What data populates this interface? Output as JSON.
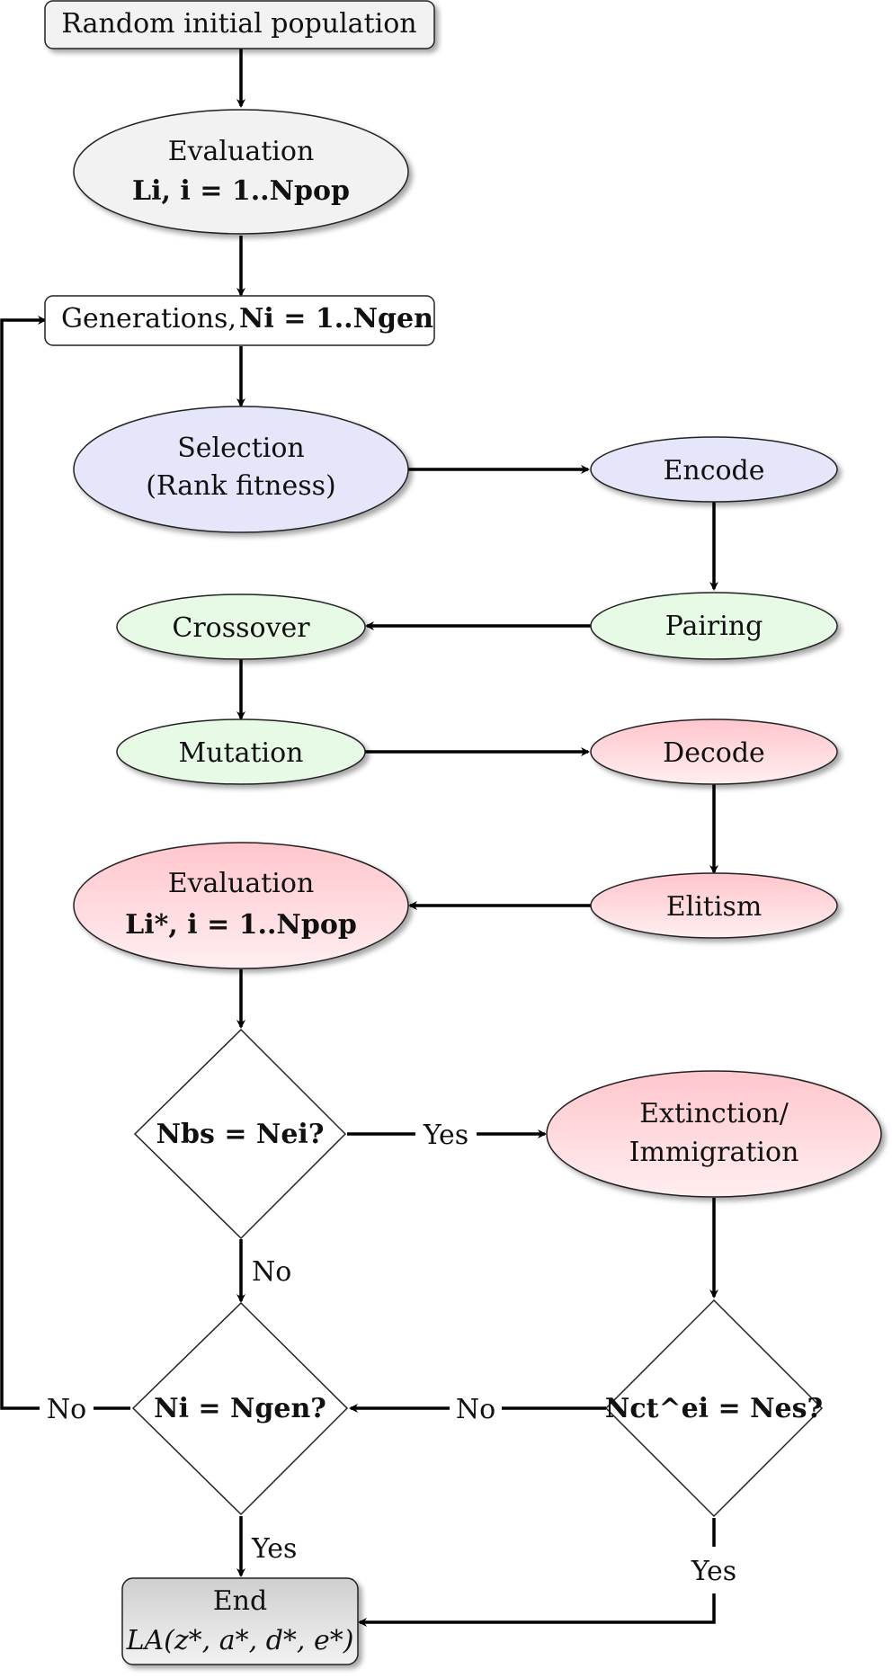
{
  "nodes": {
    "initial_population": "Random initial population",
    "evaluation1": {
      "title": "Evaluation",
      "math": "Li, i = 1..Npop"
    },
    "generations": {
      "title": "Generations,",
      "math": "Ni = 1..Ngen"
    },
    "selection": {
      "line1": "Selection",
      "line2": "(Rank fitness)"
    },
    "encode": "Encode",
    "pairing": "Pairing",
    "crossover": "Crossover",
    "mutation": "Mutation",
    "decode": "Decode",
    "elitism": "Elitism",
    "evaluation2": {
      "title": "Evaluation",
      "math": "Li*, i = 1..Npop"
    },
    "decision_bs": "Nbs = Nei?",
    "extinction": {
      "line1": "Extinction/",
      "line2": "Immigration"
    },
    "decision_gen": "Ni = Ngen?",
    "decision_ct": "Nct^ei = Nes?",
    "end": {
      "title": "End",
      "math": "LA(z*, a*, d*, e*)"
    }
  },
  "edge_labels": {
    "bs_yes": "Yes",
    "bs_no": "No",
    "gen_no_loop": "No",
    "ct_no": "No",
    "gen_yes": "Yes",
    "ct_yes": "Yes"
  },
  "colors": {
    "grey_fill": "#f2f2f2",
    "blue_fill": "#e6e6fb",
    "green_fill": "#e6fae6",
    "red_top": "#ffc8cd",
    "red_bottom": "#ffecee",
    "end_top": "#d0d0d0",
    "end_bottom": "#f0f0f0",
    "line": "#000000"
  }
}
